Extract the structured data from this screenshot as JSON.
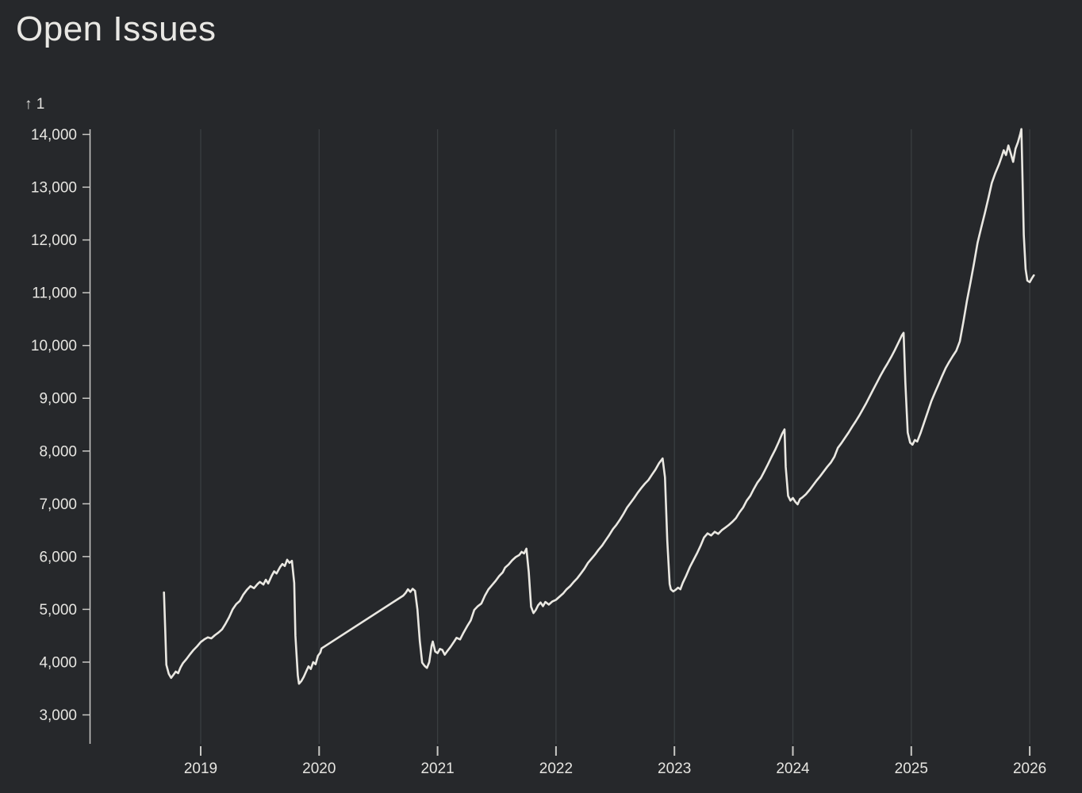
{
  "page": {
    "title": "Open Issues",
    "background": "#26282b"
  },
  "chart_data": {
    "type": "line",
    "title": "Open Issues",
    "y_axis_label": "↑ 1",
    "xlabel": "",
    "ylabel": "",
    "legend": "none",
    "grid": "vertical-year-lines",
    "xlim": [
      2018.06,
      2026.3
    ],
    "ylim": [
      3000,
      14000
    ],
    "x_ticks": [
      {
        "value": 2019,
        "label": "2019"
      },
      {
        "value": 2020,
        "label": "2020"
      },
      {
        "value": 2021,
        "label": "2021"
      },
      {
        "value": 2022,
        "label": "2022"
      },
      {
        "value": 2023,
        "label": "2023"
      },
      {
        "value": 2024,
        "label": "2024"
      },
      {
        "value": 2025,
        "label": "2025"
      },
      {
        "value": 2026,
        "label": "2026"
      }
    ],
    "y_ticks": [
      {
        "value": 3000,
        "label": "3,000"
      },
      {
        "value": 4000,
        "label": "4,000"
      },
      {
        "value": 5000,
        "label": "5,000"
      },
      {
        "value": 6000,
        "label": "6,000"
      },
      {
        "value": 7000,
        "label": "7,000"
      },
      {
        "value": 8000,
        "label": "8,000"
      },
      {
        "value": 9000,
        "label": "9,000"
      },
      {
        "value": 10000,
        "label": "10,000"
      },
      {
        "value": 11000,
        "label": "11,000"
      },
      {
        "value": 12000,
        "label": "12,000"
      },
      {
        "value": 13000,
        "label": "13,000"
      },
      {
        "value": 14000,
        "label": "14,000"
      }
    ],
    "colors": {
      "background": "#26282b",
      "line": "#eae8e2",
      "grid": "#3a3e41",
      "axis": "#c9c8c5",
      "text": "#e6e5e1"
    },
    "series": [
      {
        "name": "Open Issues",
        "points": [
          [
            2018.69,
            5320
          ],
          [
            2018.7,
            4650
          ],
          [
            2018.71,
            3950
          ],
          [
            2018.73,
            3780
          ],
          [
            2018.75,
            3700
          ],
          [
            2018.77,
            3760
          ],
          [
            2018.79,
            3820
          ],
          [
            2018.81,
            3790
          ],
          [
            2018.83,
            3900
          ],
          [
            2018.85,
            3980
          ],
          [
            2018.88,
            4060
          ],
          [
            2018.91,
            4150
          ],
          [
            2018.94,
            4230
          ],
          [
            2018.97,
            4300
          ],
          [
            2019.0,
            4380
          ],
          [
            2019.03,
            4430
          ],
          [
            2019.06,
            4470
          ],
          [
            2019.09,
            4450
          ],
          [
            2019.12,
            4510
          ],
          [
            2019.15,
            4560
          ],
          [
            2019.18,
            4620
          ],
          [
            2019.21,
            4730
          ],
          [
            2019.24,
            4850
          ],
          [
            2019.27,
            5000
          ],
          [
            2019.3,
            5100
          ],
          [
            2019.33,
            5160
          ],
          [
            2019.36,
            5280
          ],
          [
            2019.39,
            5370
          ],
          [
            2019.42,
            5440
          ],
          [
            2019.45,
            5400
          ],
          [
            2019.48,
            5480
          ],
          [
            2019.5,
            5520
          ],
          [
            2019.53,
            5470
          ],
          [
            2019.55,
            5560
          ],
          [
            2019.57,
            5490
          ],
          [
            2019.6,
            5640
          ],
          [
            2019.62,
            5720
          ],
          [
            2019.64,
            5680
          ],
          [
            2019.67,
            5800
          ],
          [
            2019.69,
            5860
          ],
          [
            2019.71,
            5820
          ],
          [
            2019.73,
            5940
          ],
          [
            2019.75,
            5880
          ],
          [
            2019.77,
            5920
          ],
          [
            2019.79,
            5500
          ],
          [
            2019.8,
            4500
          ],
          [
            2019.82,
            3750
          ],
          [
            2019.83,
            3590
          ],
          [
            2019.85,
            3640
          ],
          [
            2019.87,
            3720
          ],
          [
            2019.89,
            3820
          ],
          [
            2019.91,
            3920
          ],
          [
            2019.93,
            3870
          ],
          [
            2019.95,
            4000
          ],
          [
            2019.97,
            3960
          ],
          [
            2019.99,
            4120
          ],
          [
            2020.01,
            4180
          ],
          [
            2020.02,
            4260
          ],
          [
            2020.71,
            5260
          ],
          [
            2020.73,
            5310
          ],
          [
            2020.75,
            5380
          ],
          [
            2020.77,
            5330
          ],
          [
            2020.79,
            5390
          ],
          [
            2020.81,
            5350
          ],
          [
            2020.83,
            5000
          ],
          [
            2020.85,
            4400
          ],
          [
            2020.87,
            3990
          ],
          [
            2020.89,
            3930
          ],
          [
            2020.91,
            3890
          ],
          [
            2020.93,
            4000
          ],
          [
            2020.95,
            4310
          ],
          [
            2020.96,
            4390
          ],
          [
            2020.98,
            4200
          ],
          [
            2021.0,
            4170
          ],
          [
            2021.02,
            4250
          ],
          [
            2021.04,
            4230
          ],
          [
            2021.06,
            4140
          ],
          [
            2021.08,
            4200
          ],
          [
            2021.11,
            4290
          ],
          [
            2021.14,
            4390
          ],
          [
            2021.16,
            4460
          ],
          [
            2021.19,
            4430
          ],
          [
            2021.22,
            4560
          ],
          [
            2021.25,
            4680
          ],
          [
            2021.28,
            4790
          ],
          [
            2021.31,
            4990
          ],
          [
            2021.34,
            5060
          ],
          [
            2021.37,
            5110
          ],
          [
            2021.4,
            5260
          ],
          [
            2021.43,
            5380
          ],
          [
            2021.46,
            5460
          ],
          [
            2021.49,
            5540
          ],
          [
            2021.52,
            5630
          ],
          [
            2021.55,
            5700
          ],
          [
            2021.57,
            5790
          ],
          [
            2021.6,
            5850
          ],
          [
            2021.63,
            5930
          ],
          [
            2021.66,
            5990
          ],
          [
            2021.69,
            6030
          ],
          [
            2021.71,
            6090
          ],
          [
            2021.73,
            6060
          ],
          [
            2021.75,
            6150
          ],
          [
            2021.77,
            5700
          ],
          [
            2021.79,
            5050
          ],
          [
            2021.81,
            4930
          ],
          [
            2021.83,
            4990
          ],
          [
            2021.85,
            5080
          ],
          [
            2021.87,
            5130
          ],
          [
            2021.89,
            5060
          ],
          [
            2021.91,
            5140
          ],
          [
            2021.94,
            5090
          ],
          [
            2021.97,
            5150
          ],
          [
            2022.0,
            5180
          ],
          [
            2022.03,
            5240
          ],
          [
            2022.06,
            5300
          ],
          [
            2022.09,
            5380
          ],
          [
            2022.12,
            5440
          ],
          [
            2022.15,
            5520
          ],
          [
            2022.18,
            5590
          ],
          [
            2022.21,
            5680
          ],
          [
            2022.24,
            5770
          ],
          [
            2022.27,
            5880
          ],
          [
            2022.3,
            5960
          ],
          [
            2022.33,
            6040
          ],
          [
            2022.36,
            6130
          ],
          [
            2022.39,
            6210
          ],
          [
            2022.42,
            6310
          ],
          [
            2022.45,
            6410
          ],
          [
            2022.48,
            6520
          ],
          [
            2022.51,
            6600
          ],
          [
            2022.54,
            6700
          ],
          [
            2022.57,
            6810
          ],
          [
            2022.6,
            6930
          ],
          [
            2022.63,
            7020
          ],
          [
            2022.66,
            7110
          ],
          [
            2022.69,
            7210
          ],
          [
            2022.72,
            7300
          ],
          [
            2022.75,
            7380
          ],
          [
            2022.78,
            7450
          ],
          [
            2022.81,
            7550
          ],
          [
            2022.84,
            7650
          ],
          [
            2022.87,
            7770
          ],
          [
            2022.9,
            7860
          ],
          [
            2022.92,
            7500
          ],
          [
            2022.94,
            6300
          ],
          [
            2022.96,
            5480
          ],
          [
            2022.97,
            5380
          ],
          [
            2022.99,
            5340
          ],
          [
            2023.01,
            5370
          ],
          [
            2023.03,
            5410
          ],
          [
            2023.05,
            5380
          ],
          [
            2023.07,
            5500
          ],
          [
            2023.1,
            5640
          ],
          [
            2023.13,
            5800
          ],
          [
            2023.16,
            5930
          ],
          [
            2023.19,
            6060
          ],
          [
            2023.22,
            6200
          ],
          [
            2023.25,
            6360
          ],
          [
            2023.28,
            6440
          ],
          [
            2023.31,
            6400
          ],
          [
            2023.34,
            6470
          ],
          [
            2023.37,
            6430
          ],
          [
            2023.4,
            6500
          ],
          [
            2023.43,
            6550
          ],
          [
            2023.46,
            6600
          ],
          [
            2023.49,
            6660
          ],
          [
            2023.52,
            6730
          ],
          [
            2023.55,
            6840
          ],
          [
            2023.58,
            6930
          ],
          [
            2023.61,
            7060
          ],
          [
            2023.64,
            7150
          ],
          [
            2023.67,
            7280
          ],
          [
            2023.7,
            7400
          ],
          [
            2023.73,
            7490
          ],
          [
            2023.76,
            7620
          ],
          [
            2023.79,
            7750
          ],
          [
            2023.82,
            7890
          ],
          [
            2023.85,
            8020
          ],
          [
            2023.88,
            8170
          ],
          [
            2023.91,
            8330
          ],
          [
            2023.93,
            8410
          ],
          [
            2023.94,
            7700
          ],
          [
            2023.96,
            7150
          ],
          [
            2023.98,
            7060
          ],
          [
            2024.0,
            7110
          ],
          [
            2024.02,
            7040
          ],
          [
            2024.04,
            6990
          ],
          [
            2024.06,
            7090
          ],
          [
            2024.08,
            7120
          ],
          [
            2024.11,
            7180
          ],
          [
            2024.14,
            7260
          ],
          [
            2024.17,
            7350
          ],
          [
            2024.2,
            7440
          ],
          [
            2024.23,
            7520
          ],
          [
            2024.26,
            7610
          ],
          [
            2024.29,
            7700
          ],
          [
            2024.32,
            7780
          ],
          [
            2024.35,
            7890
          ],
          [
            2024.38,
            8060
          ],
          [
            2024.41,
            8150
          ],
          [
            2024.44,
            8250
          ],
          [
            2024.47,
            8350
          ],
          [
            2024.5,
            8460
          ],
          [
            2024.53,
            8560
          ],
          [
            2024.56,
            8670
          ],
          [
            2024.59,
            8790
          ],
          [
            2024.62,
            8910
          ],
          [
            2024.65,
            9040
          ],
          [
            2024.68,
            9170
          ],
          [
            2024.71,
            9300
          ],
          [
            2024.74,
            9430
          ],
          [
            2024.77,
            9550
          ],
          [
            2024.8,
            9660
          ],
          [
            2024.83,
            9780
          ],
          [
            2024.86,
            9910
          ],
          [
            2024.89,
            10050
          ],
          [
            2024.92,
            10190
          ],
          [
            2024.935,
            10240
          ],
          [
            2024.95,
            9300
          ],
          [
            2024.97,
            8350
          ],
          [
            2024.99,
            8160
          ],
          [
            2025.01,
            8120
          ],
          [
            2025.03,
            8210
          ],
          [
            2025.05,
            8180
          ],
          [
            2025.08,
            8350
          ],
          [
            2025.11,
            8550
          ],
          [
            2025.14,
            8750
          ],
          [
            2025.17,
            8950
          ],
          [
            2025.2,
            9110
          ],
          [
            2025.23,
            9260
          ],
          [
            2025.26,
            9420
          ],
          [
            2025.29,
            9570
          ],
          [
            2025.32,
            9690
          ],
          [
            2025.35,
            9800
          ],
          [
            2025.38,
            9900
          ],
          [
            2025.41,
            10080
          ],
          [
            2025.44,
            10450
          ],
          [
            2025.47,
            10850
          ],
          [
            2025.5,
            11200
          ],
          [
            2025.53,
            11560
          ],
          [
            2025.56,
            11950
          ],
          [
            2025.59,
            12230
          ],
          [
            2025.62,
            12500
          ],
          [
            2025.65,
            12780
          ],
          [
            2025.68,
            13080
          ],
          [
            2025.71,
            13270
          ],
          [
            2025.74,
            13430
          ],
          [
            2025.76,
            13560
          ],
          [
            2025.78,
            13700
          ],
          [
            2025.8,
            13610
          ],
          [
            2025.82,
            13790
          ],
          [
            2025.84,
            13640
          ],
          [
            2025.86,
            13480
          ],
          [
            2025.88,
            13730
          ],
          [
            2025.9,
            13850
          ],
          [
            2025.92,
            14010
          ],
          [
            2025.93,
            14100
          ],
          [
            2025.94,
            13100
          ],
          [
            2025.95,
            12100
          ],
          [
            2025.965,
            11450
          ],
          [
            2025.98,
            11230
          ],
          [
            2026.0,
            11200
          ],
          [
            2026.02,
            11280
          ],
          [
            2026.035,
            11330
          ]
        ]
      }
    ]
  }
}
